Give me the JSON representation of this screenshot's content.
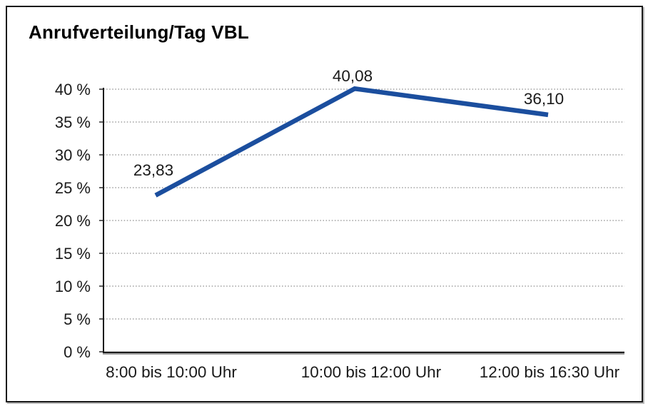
{
  "frame": {
    "border_color": "#1a1a1a",
    "background": "#ffffff"
  },
  "chart_data": {
    "type": "line",
    "title": "Anrufverteilung/Tag VBL",
    "categories": [
      "8:00 bis 10:00 Uhr",
      "10:00 bis 12:00 Uhr",
      "12:00 bis 16:30 Uhr"
    ],
    "values": [
      23.83,
      40.08,
      36.1
    ],
    "data_labels": [
      "23,83",
      "40,08",
      "36,10"
    ],
    "y_ticks": [
      0,
      5,
      10,
      15,
      20,
      25,
      30,
      35,
      40
    ],
    "y_tick_labels": [
      "0 %",
      "5 %",
      "10 %",
      "15 %",
      "20 %",
      "25 %",
      "30 %",
      "35 %",
      "40 %"
    ],
    "ylim": [
      0,
      40
    ],
    "xlabel": "",
    "ylabel": "",
    "legend": "none",
    "grid": "horizontal-dotted",
    "line_color": "#1b4e9e",
    "axis_color": "#1a1a1a",
    "axis_shadow_color": "#9a9a9a",
    "gridline_color": "#6f6f6f",
    "text_color": "#1a1a1a"
  }
}
